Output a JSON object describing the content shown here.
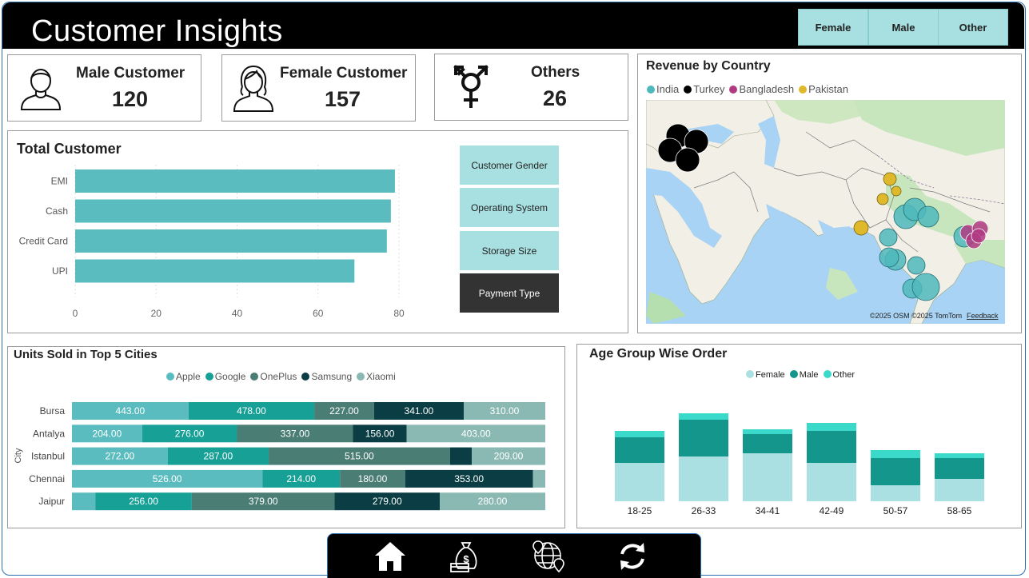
{
  "header": {
    "title": "Customer Insights",
    "filters": [
      "Female",
      "Male",
      "Other"
    ]
  },
  "kpis": {
    "male": {
      "label": "Male Customer",
      "value": "120"
    },
    "female": {
      "label": "Female Customer",
      "value": "157"
    },
    "others": {
      "label": "Others",
      "value": "26"
    }
  },
  "total_customer": {
    "title": "Total Customer",
    "buttons": [
      "Customer Gender",
      "Operating System",
      "Storage Size",
      "Payment Type"
    ],
    "active_button": "Payment Type"
  },
  "map": {
    "title": "Revenue by Country",
    "legend": [
      {
        "name": "India",
        "color": "#4fb8bc"
      },
      {
        "name": "Turkey",
        "color": "#000000"
      },
      {
        "name": "Bangladesh",
        "color": "#b03a82"
      },
      {
        "name": "Pakistan",
        "color": "#e0b82c"
      }
    ],
    "attribution": "©2025 OSM  ©2025 TomTom",
    "feedback": "Feedback"
  },
  "units": {
    "title": "Units Sold in Top 5 Cities",
    "axis_label": "City"
  },
  "age": {
    "title": "Age Group Wise Order"
  },
  "nav": {
    "icons": [
      "home-icon",
      "money-bag-icon",
      "globe-location-icon",
      "refresh-icon"
    ]
  },
  "chart_data": [
    {
      "type": "bar",
      "orientation": "horizontal",
      "categories": [
        "EMI",
        "Cash",
        "Credit Card",
        "UPI"
      ],
      "values": [
        79,
        78,
        77,
        69
      ],
      "xlim": [
        0,
        80
      ],
      "xticks": [
        0,
        20,
        40,
        60,
        80
      ],
      "color": "#5abcbe",
      "grid": true
    },
    {
      "type": "bar",
      "orientation": "horizontal",
      "stacked": true,
      "categories": [
        "Bursa",
        "Antalya",
        "Istanbul",
        "Chennai",
        "Jaipur"
      ],
      "series": [
        {
          "name": "Apple",
          "color": "#5abcbe",
          "values": [
            443,
            204,
            272,
            526,
            62
          ],
          "labels": [
            "443.00",
            "204.00",
            "272.00",
            "526.00",
            ""
          ]
        },
        {
          "name": "Google",
          "color": "#16a096",
          "values": [
            478,
            276,
            287,
            214,
            256
          ],
          "labels": [
            "478.00",
            "276.00",
            "287.00",
            "214.00",
            "256.00"
          ]
        },
        {
          "name": "OnePlus",
          "color": "#4a7e74",
          "values": [
            227,
            337,
            515,
            180,
            379
          ],
          "labels": [
            "227.00",
            "337.00",
            "515.00",
            "180.00",
            "379.00"
          ]
        },
        {
          "name": "Samsung",
          "color": "#0b3e44",
          "values": [
            341,
            156,
            62,
            353,
            279
          ],
          "labels": [
            "341.00",
            "156.00",
            "",
            "353.00",
            "279.00"
          ]
        },
        {
          "name": "Xiaomi",
          "color": "#8ab9b3",
          "values": [
            310,
            403,
            209,
            34,
            280
          ],
          "labels": [
            "310.00",
            "403.00",
            "209.00",
            "",
            "280.00"
          ]
        }
      ],
      "ylabel": "City"
    },
    {
      "type": "bar",
      "stacked": true,
      "categories": [
        "18-25",
        "26-33",
        "34-41",
        "42-49",
        "50-57",
        "58-65"
      ],
      "series": [
        {
          "name": "Female",
          "color": "#abe0e2",
          "values": [
            24,
            28,
            30,
            24,
            10,
            14
          ]
        },
        {
          "name": "Male",
          "color": "#14968c",
          "values": [
            16,
            23,
            12,
            20,
            17,
            13
          ]
        },
        {
          "name": "Other",
          "color": "#3ad9c9",
          "values": [
            4,
            4,
            3,
            5,
            5,
            3
          ]
        }
      ]
    }
  ]
}
